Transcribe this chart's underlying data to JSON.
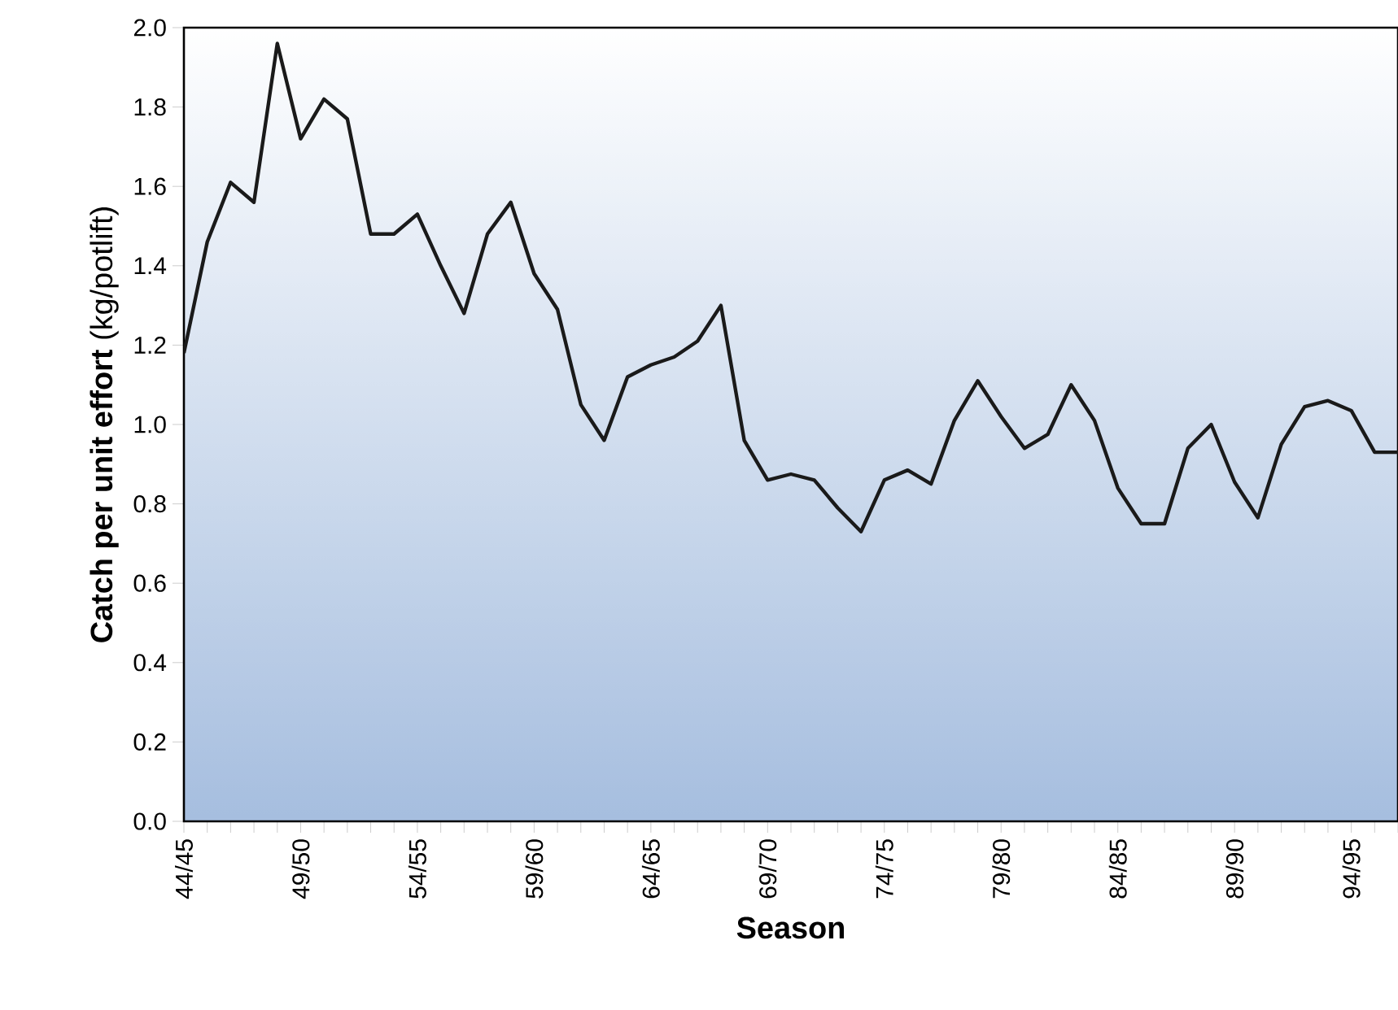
{
  "chart_data": {
    "type": "line",
    "xlabel": "Season",
    "ylabel": "**Catch per unit effort** (kg/potlift)",
    "categories": [
      "44/45",
      null,
      null,
      null,
      null,
      "49/50",
      null,
      null,
      null,
      null,
      "54/55",
      null,
      null,
      null,
      null,
      "59/60",
      null,
      null,
      null,
      null,
      "64/65",
      null,
      null,
      null,
      null,
      "69/70",
      null,
      null,
      null,
      null,
      "74/75",
      null,
      null,
      null,
      null,
      "79/80",
      null,
      null,
      null,
      null,
      "84/85",
      null,
      null,
      null,
      null,
      "89/90",
      null,
      null,
      null,
      null,
      "94/95",
      null,
      null
    ],
    "values": [
      1.18,
      1.46,
      1.61,
      1.56,
      1.96,
      1.72,
      1.82,
      1.77,
      1.48,
      1.48,
      1.53,
      1.4,
      1.28,
      1.48,
      1.56,
      1.38,
      1.29,
      1.05,
      0.96,
      1.12,
      1.15,
      1.17,
      1.21,
      1.3,
      0.96,
      0.86,
      0.875,
      0.86,
      0.79,
      0.73,
      0.86,
      0.885,
      0.85,
      1.01,
      1.11,
      1.02,
      0.94,
      0.975,
      1.1,
      1.01,
      0.84,
      0.75,
      0.75,
      0.94,
      1.0,
      0.855,
      0.765,
      0.95,
      1.045,
      1.06,
      1.035,
      0.93,
      0.93
    ],
    "color": "#1a1a1a",
    "ylim": [
      0,
      2
    ],
    "yticks": [
      {
        "value": 0,
        "label": "0.0"
      },
      {
        "value": 0.2,
        "label": "0.2"
      },
      {
        "value": 0.4,
        "label": "0.4"
      },
      {
        "value": 0.6,
        "label": "0.6"
      },
      {
        "value": 0.8,
        "label": "0.8"
      },
      {
        "value": 1.0,
        "label": "1.0"
      },
      {
        "value": 1.2,
        "label": "1.2"
      },
      {
        "value": 1.4,
        "label": "1.4"
      },
      {
        "value": 1.6,
        "label": "1.6"
      },
      {
        "value": 1.8,
        "label": "1.8"
      },
      {
        "value": 2.0,
        "label": "2.0"
      }
    ]
  }
}
